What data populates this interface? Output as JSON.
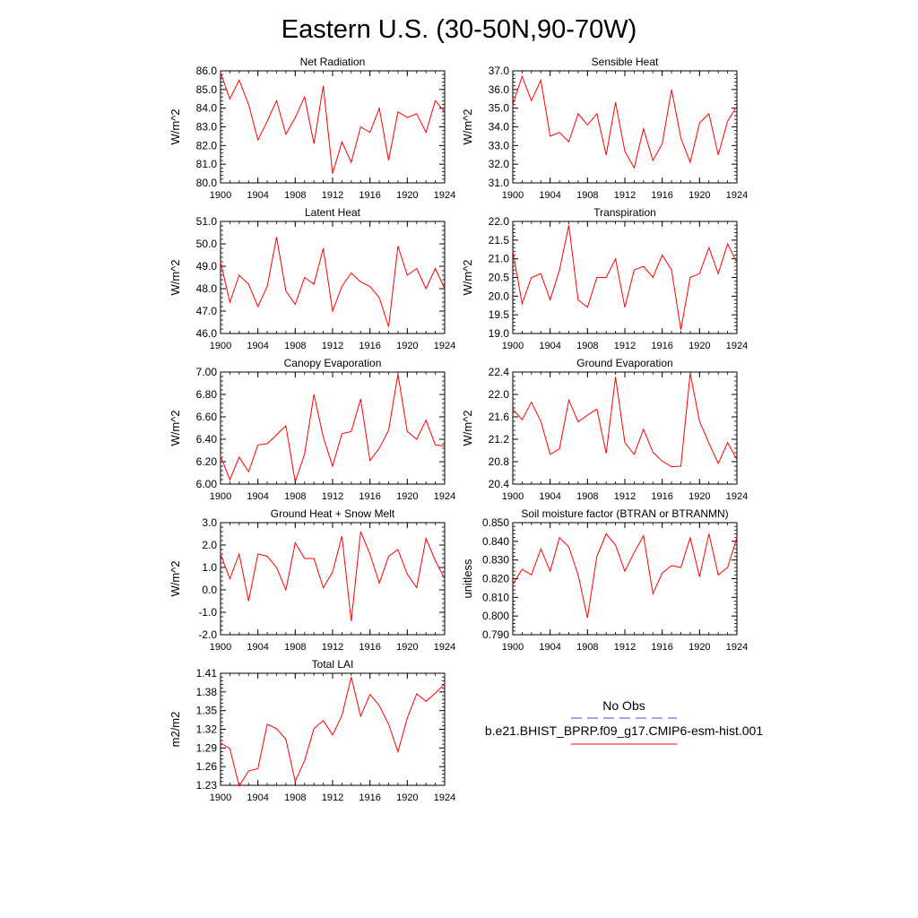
{
  "title": "Eastern U.S. (30-50N,90-70W)",
  "colors": {
    "series": "#ff0000",
    "obs": "#4a4ad0",
    "axis": "#000000"
  },
  "legend": {
    "obs_label": "No Obs",
    "model_label": "b.e21.BHIST_BPRP.f09_g17.CMIP6-esm-hist.001"
  },
  "chart_data": [
    {
      "type": "line",
      "title": "Net Radiation",
      "ylabel": "W/m^2",
      "xlim": [
        1900,
        1924
      ],
      "ylim": [
        80.0,
        86.0
      ],
      "xticks": [
        1900,
        1904,
        1908,
        1912,
        1916,
        1920,
        1924
      ],
      "yticks": [
        "80.0",
        "81.0",
        "82.0",
        "83.0",
        "84.0",
        "85.0",
        "86.0"
      ],
      "x": [
        1900,
        1901,
        1902,
        1903,
        1904,
        1905,
        1906,
        1907,
        1908,
        1909,
        1910,
        1911,
        1912,
        1913,
        1914,
        1915,
        1916,
        1917,
        1918,
        1919,
        1920,
        1921,
        1922,
        1923,
        1924
      ],
      "series": [
        {
          "name": "b.e21.BHIST_BPRP.f09_g17.CMIP6-esm-hist.001",
          "values": [
            85.9,
            84.5,
            85.5,
            84.2,
            82.3,
            83.3,
            84.4,
            82.6,
            83.5,
            84.6,
            82.1,
            85.2,
            80.5,
            82.2,
            81.1,
            83.0,
            82.7,
            84.0,
            81.2,
            83.8,
            83.5,
            83.7,
            82.7,
            84.4,
            83.8
          ]
        }
      ]
    },
    {
      "type": "line",
      "title": "Sensible Heat",
      "ylabel": "W/m^2",
      "xlim": [
        1900,
        1924
      ],
      "ylim": [
        31.0,
        37.0
      ],
      "xticks": [
        1900,
        1904,
        1908,
        1912,
        1916,
        1920,
        1924
      ],
      "yticks": [
        "31.0",
        "32.0",
        "33.0",
        "34.0",
        "35.0",
        "36.0",
        "37.0"
      ],
      "x": [
        1900,
        1901,
        1902,
        1903,
        1904,
        1905,
        1906,
        1907,
        1908,
        1909,
        1910,
        1911,
        1912,
        1913,
        1914,
        1915,
        1916,
        1917,
        1918,
        1919,
        1920,
        1921,
        1922,
        1923,
        1924
      ],
      "series": [
        {
          "name": "b.e21.BHIST_BPRP.f09_g17.CMIP6-esm-hist.001",
          "values": [
            35.2,
            36.7,
            35.4,
            36.5,
            33.5,
            33.7,
            33.2,
            34.7,
            34.1,
            34.7,
            32.5,
            35.3,
            32.7,
            31.8,
            33.9,
            32.2,
            33.1,
            36.0,
            33.4,
            32.1,
            34.2,
            34.7,
            32.5,
            34.3,
            35.1
          ]
        }
      ]
    },
    {
      "type": "line",
      "title": "Latent Heat",
      "ylabel": "W/m^2",
      "xlim": [
        1900,
        1924
      ],
      "ylim": [
        46.0,
        51.0
      ],
      "xticks": [
        1900,
        1904,
        1908,
        1912,
        1916,
        1920,
        1924
      ],
      "yticks": [
        "46.0",
        "47.0",
        "48.0",
        "49.0",
        "50.0",
        "51.0"
      ],
      "x": [
        1900,
        1901,
        1902,
        1903,
        1904,
        1905,
        1906,
        1907,
        1908,
        1909,
        1910,
        1911,
        1912,
        1913,
        1914,
        1915,
        1916,
        1917,
        1918,
        1919,
        1920,
        1921,
        1922,
        1923,
        1924
      ],
      "series": [
        {
          "name": "b.e21.BHIST_BPRP.f09_g17.CMIP6-esm-hist.001",
          "values": [
            49.2,
            47.4,
            48.6,
            48.2,
            47.2,
            48.1,
            50.3,
            47.9,
            47.3,
            48.5,
            48.2,
            49.8,
            47.0,
            48.1,
            48.7,
            48.3,
            48.1,
            47.6,
            46.3,
            49.9,
            48.6,
            48.9,
            48.0,
            48.9,
            48.0
          ]
        }
      ]
    },
    {
      "type": "line",
      "title": "Transpiration",
      "ylabel": "W/m^2",
      "xlim": [
        1900,
        1924
      ],
      "ylim": [
        19.0,
        22.0
      ],
      "xticks": [
        1900,
        1904,
        1908,
        1912,
        1916,
        1920,
        1924
      ],
      "yticks": [
        "19.0",
        "19.5",
        "20.0",
        "20.5",
        "21.0",
        "21.5",
        "22.0"
      ],
      "x": [
        1900,
        1901,
        1902,
        1903,
        1904,
        1905,
        1906,
        1907,
        1908,
        1909,
        1910,
        1911,
        1912,
        1913,
        1914,
        1915,
        1916,
        1917,
        1918,
        1919,
        1920,
        1921,
        1922,
        1923,
        1924
      ],
      "series": [
        {
          "name": "b.e21.BHIST_BPRP.f09_g17.CMIP6-esm-hist.001",
          "values": [
            21.2,
            19.8,
            20.5,
            20.6,
            19.9,
            20.7,
            21.9,
            19.9,
            19.7,
            20.5,
            20.5,
            21.0,
            19.7,
            20.7,
            20.8,
            20.5,
            21.1,
            20.7,
            19.1,
            20.5,
            20.6,
            21.3,
            20.6,
            21.4,
            20.9
          ]
        }
      ]
    },
    {
      "type": "line",
      "title": "Canopy Evaporation",
      "ylabel": "W/m^2",
      "xlim": [
        1900,
        1924
      ],
      "ylim": [
        6.0,
        7.0
      ],
      "xticks": [
        1900,
        1904,
        1908,
        1912,
        1916,
        1920,
        1924
      ],
      "yticks": [
        "6.00",
        "6.20",
        "6.40",
        "6.60",
        "6.80",
        "7.00"
      ],
      "x": [
        1900,
        1901,
        1902,
        1903,
        1904,
        1905,
        1906,
        1907,
        1908,
        1909,
        1910,
        1911,
        1912,
        1913,
        1914,
        1915,
        1916,
        1917,
        1918,
        1919,
        1920,
        1921,
        1922,
        1923,
        1924
      ],
      "series": [
        {
          "name": "b.e21.BHIST_BPRP.f09_g17.CMIP6-esm-hist.001",
          "values": [
            6.25,
            6.04,
            6.24,
            6.11,
            6.35,
            6.36,
            6.44,
            6.52,
            6.02,
            6.27,
            6.8,
            6.42,
            6.16,
            6.45,
            6.47,
            6.76,
            6.21,
            6.32,
            6.48,
            6.98,
            6.47,
            6.4,
            6.57,
            6.35,
            6.34
          ]
        }
      ]
    },
    {
      "type": "line",
      "title": "Ground Evaporation",
      "ylabel": "W/m^2",
      "xlim": [
        1900,
        1924
      ],
      "ylim": [
        20.4,
        22.4
      ],
      "xticks": [
        1900,
        1904,
        1908,
        1912,
        1916,
        1920,
        1924
      ],
      "yticks": [
        "20.4",
        "20.8",
        "21.2",
        "21.6",
        "22.0",
        "22.4"
      ],
      "x": [
        1900,
        1901,
        1902,
        1903,
        1904,
        1905,
        1906,
        1907,
        1908,
        1909,
        1910,
        1911,
        1912,
        1913,
        1914,
        1915,
        1916,
        1917,
        1918,
        1919,
        1920,
        1921,
        1922,
        1923,
        1924
      ],
      "series": [
        {
          "name": "b.e21.BHIST_BPRP.f09_g17.CMIP6-esm-hist.001",
          "values": [
            21.74,
            21.55,
            21.86,
            21.52,
            20.93,
            21.03,
            21.9,
            21.51,
            21.63,
            21.74,
            20.95,
            22.31,
            21.14,
            20.93,
            21.38,
            20.97,
            20.81,
            20.71,
            20.72,
            22.38,
            21.52,
            21.13,
            20.77,
            21.14,
            20.84
          ]
        }
      ]
    },
    {
      "type": "line",
      "title": "Ground Heat + Snow Melt",
      "ylabel": "W/m^2",
      "xlim": [
        1900,
        1924
      ],
      "ylim": [
        -2.0,
        3.0
      ],
      "xticks": [
        1900,
        1904,
        1908,
        1912,
        1916,
        1920,
        1924
      ],
      "yticks": [
        "-2.0",
        "-1.0",
        "0.0",
        "1.0",
        "2.0",
        "3.0"
      ],
      "x": [
        1900,
        1901,
        1902,
        1903,
        1904,
        1905,
        1906,
        1907,
        1908,
        1909,
        1910,
        1911,
        1912,
        1913,
        1914,
        1915,
        1916,
        1917,
        1918,
        1919,
        1920,
        1921,
        1922,
        1923,
        1924
      ],
      "series": [
        {
          "name": "b.e21.BHIST_BPRP.f09_g17.CMIP6-esm-hist.001",
          "values": [
            1.6,
            0.5,
            1.6,
            -0.5,
            1.6,
            1.5,
            1.0,
            0.0,
            2.1,
            1.4,
            1.4,
            0.1,
            0.8,
            2.4,
            -1.4,
            2.6,
            1.6,
            0.3,
            1.5,
            1.8,
            0.7,
            0.1,
            2.3,
            1.3,
            0.5
          ]
        }
      ]
    },
    {
      "type": "line",
      "title": "Soil moisture factor (BTRAN or BTRANMN)",
      "ylabel": "unitless",
      "xlim": [
        1900,
        1924
      ],
      "ylim": [
        0.79,
        0.85
      ],
      "xticks": [
        1900,
        1904,
        1908,
        1912,
        1916,
        1920,
        1924
      ],
      "yticks": [
        "0.790",
        "0.800",
        "0.810",
        "0.820",
        "0.830",
        "0.840",
        "0.850"
      ],
      "x": [
        1900,
        1901,
        1902,
        1903,
        1904,
        1905,
        1906,
        1907,
        1908,
        1909,
        1910,
        1911,
        1912,
        1913,
        1914,
        1915,
        1916,
        1917,
        1918,
        1919,
        1920,
        1921,
        1922,
        1923,
        1924
      ],
      "series": [
        {
          "name": "b.e21.BHIST_BPRP.f09_g17.CMIP6-esm-hist.001",
          "values": [
            0.817,
            0.825,
            0.822,
            0.836,
            0.824,
            0.842,
            0.837,
            0.822,
            0.799,
            0.832,
            0.844,
            0.838,
            0.824,
            0.834,
            0.843,
            0.812,
            0.823,
            0.827,
            0.826,
            0.842,
            0.821,
            0.844,
            0.822,
            0.826,
            0.842
          ]
        }
      ]
    },
    {
      "type": "line",
      "title": "Total LAI",
      "ylabel": "m2/m2",
      "xlim": [
        1900,
        1924
      ],
      "ylim": [
        1.23,
        1.41
      ],
      "xticks": [
        1900,
        1904,
        1908,
        1912,
        1916,
        1920,
        1924
      ],
      "yticks": [
        "1.23",
        "1.26",
        "1.29",
        "1.32",
        "1.35",
        "1.38",
        "1.41"
      ],
      "x": [
        1900,
        1901,
        1902,
        1903,
        1904,
        1905,
        1906,
        1907,
        1908,
        1909,
        1910,
        1911,
        1912,
        1913,
        1914,
        1915,
        1916,
        1917,
        1918,
        1919,
        1920,
        1921,
        1922,
        1923,
        1924
      ],
      "series": [
        {
          "name": "b.e21.BHIST_BPRP.f09_g17.CMIP6-esm-hist.001",
          "values": [
            1.298,
            1.289,
            1.229,
            1.253,
            1.257,
            1.328,
            1.321,
            1.304,
            1.236,
            1.27,
            1.321,
            1.334,
            1.311,
            1.342,
            1.404,
            1.341,
            1.376,
            1.358,
            1.328,
            1.284,
            1.338,
            1.377,
            1.365,
            1.378,
            1.393
          ]
        }
      ]
    }
  ]
}
